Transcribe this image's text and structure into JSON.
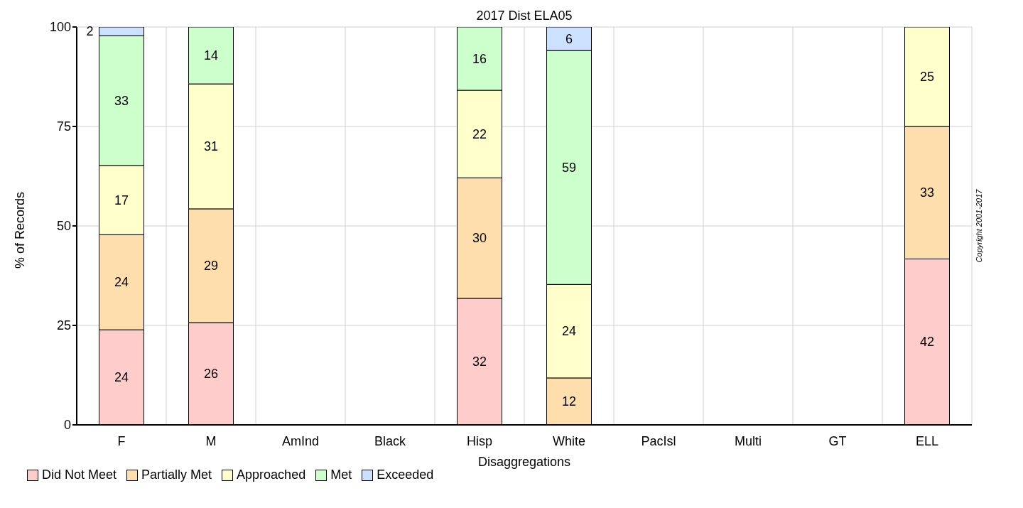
{
  "chart_data": {
    "type": "bar",
    "title": "2017 Dist ELA05",
    "xlabel": "Disaggregations",
    "ylabel": "% of Records",
    "stacked": true,
    "grid": true,
    "legend": "bottom left",
    "categories": [
      "F",
      "M",
      "AmInd",
      "Black",
      "Hisp",
      "White",
      "PacIsl",
      "Multi",
      "GT",
      "ELL"
    ],
    "ylim": [
      0,
      100
    ],
    "yticks": [
      0,
      25,
      50,
      75,
      100
    ],
    "series": [
      {
        "name": "Did Not Meet",
        "color": "#ffcccc",
        "values": [
          23.9,
          25.7,
          null,
          null,
          31.8,
          null,
          null,
          null,
          null,
          41.7
        ],
        "value_labels": [
          "24",
          "26",
          null,
          null,
          "32",
          null,
          null,
          null,
          null,
          "42"
        ]
      },
      {
        "name": "Partially Met",
        "color": "#ffdead",
        "values": [
          23.9,
          28.6,
          null,
          null,
          30.3,
          11.8,
          null,
          null,
          null,
          33.3
        ],
        "value_labels": [
          "24",
          "29",
          null,
          null,
          "30",
          "12",
          null,
          null,
          null,
          "33"
        ]
      },
      {
        "name": "Approached",
        "color": "#ffffcc",
        "values": [
          17.4,
          31.4,
          null,
          null,
          22,
          23.5,
          null,
          null,
          null,
          25
        ],
        "value_labels": [
          "17",
          "31",
          null,
          null,
          "22",
          "24",
          null,
          null,
          null,
          "25"
        ]
      },
      {
        "name": "Met",
        "color": "#ccffcc",
        "values": [
          32.6,
          14.3,
          null,
          null,
          15.9,
          58.8,
          null,
          null,
          null,
          null
        ],
        "value_labels": [
          "33",
          "14",
          null,
          null,
          "16",
          "59",
          null,
          null,
          null,
          null
        ]
      },
      {
        "name": "Exceeded",
        "color": "#cce0ff",
        "values": [
          2.2,
          null,
          null,
          null,
          null,
          5.9,
          null,
          null,
          null,
          null
        ],
        "value_labels": [
          "2",
          null,
          null,
          null,
          null,
          "6",
          null,
          null,
          null,
          null
        ]
      }
    ],
    "annotations": [
      "Copyright 2001-2017"
    ]
  }
}
